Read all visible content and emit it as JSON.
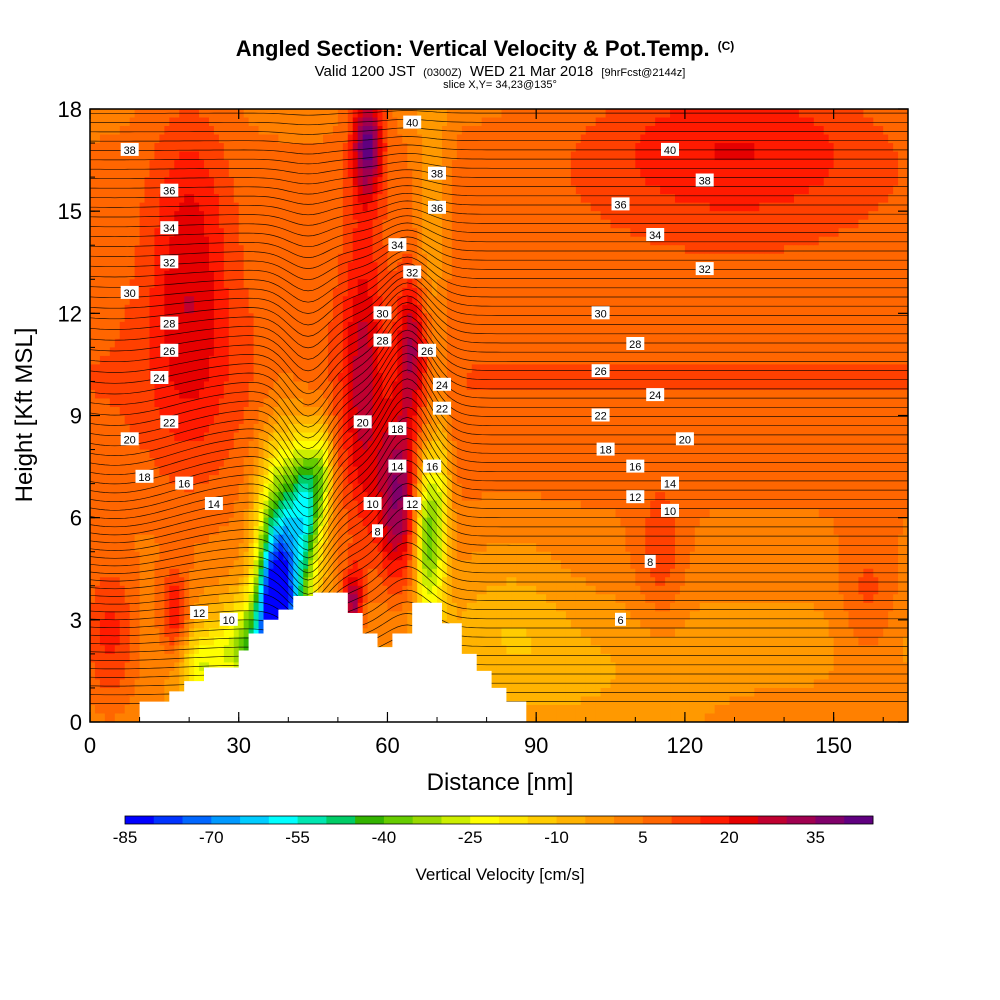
{
  "chart_data": {
    "type": "heatmap",
    "title": "Angled Section: Vertical Velocity & Pot.Temp.",
    "title_mark": "(C)",
    "subtitle_valid": "Valid 1200 JST",
    "subtitle_z": "(0300Z)",
    "subtitle_date": "WED 21 Mar 2018",
    "subtitle_fcst": "[9hrFcst@2144z]",
    "subtitle_slice": "slice X,Y= 34,23@135°",
    "xlabel": "Distance [nm]",
    "ylabel": "Height [Kft MSL]",
    "xlim": [
      0,
      165
    ],
    "ylim": [
      0,
      18
    ],
    "x_ticks": [
      "0",
      "30",
      "60",
      "90",
      "120",
      "150"
    ],
    "y_ticks": [
      "0",
      "3",
      "6",
      "9",
      "12",
      "15",
      "18"
    ],
    "colorbar": {
      "title": "Vertical Velocity [cm/s]",
      "tick_labels": [
        "-85",
        "-70",
        "-55",
        "-40",
        "-25",
        "-10",
        "5",
        "20",
        "35"
      ],
      "colors": [
        "#0000ff",
        "#0033ff",
        "#0066ff",
        "#0099ff",
        "#00ccff",
        "#00ffff",
        "#00e6b0",
        "#00cc66",
        "#33b300",
        "#66cc00",
        "#99d900",
        "#ccee00",
        "#ffff00",
        "#ffe600",
        "#ffcc00",
        "#ffb300",
        "#ff9900",
        "#ff8000",
        "#ff6600",
        "#ff4000",
        "#ff1a00",
        "#e60000",
        "#c00030",
        "#a00050",
        "#80006a",
        "#600080"
      ]
    },
    "terrain": [
      [
        0,
        0
      ],
      [
        10,
        0
      ],
      [
        10,
        0.6
      ],
      [
        16,
        0.6
      ],
      [
        16,
        0.9
      ],
      [
        19,
        0.9
      ],
      [
        19,
        1.2
      ],
      [
        23,
        1.2
      ],
      [
        23,
        1.6
      ],
      [
        30,
        1.6
      ],
      [
        30,
        2.1
      ],
      [
        32,
        2.1
      ],
      [
        32,
        2.6
      ],
      [
        35,
        2.6
      ],
      [
        35,
        3.0
      ],
      [
        38,
        3.0
      ],
      [
        38,
        3.3
      ],
      [
        41,
        3.3
      ],
      [
        41,
        3.7
      ],
      [
        45,
        3.7
      ],
      [
        45,
        3.8
      ],
      [
        52,
        3.8
      ],
      [
        52,
        3.2
      ],
      [
        55,
        3.2
      ],
      [
        55,
        2.6
      ],
      [
        58,
        2.6
      ],
      [
        58,
        2.2
      ],
      [
        61,
        2.2
      ],
      [
        61,
        2.6
      ],
      [
        65,
        2.6
      ],
      [
        65,
        3.5
      ],
      [
        71,
        3.5
      ],
      [
        71,
        2.9
      ],
      [
        75,
        2.9
      ],
      [
        75,
        2.0
      ],
      [
        78,
        2.0
      ],
      [
        78,
        1.5
      ],
      [
        81,
        1.5
      ],
      [
        81,
        1.0
      ],
      [
        84,
        1.0
      ],
      [
        84,
        0.6
      ],
      [
        88,
        0.6
      ],
      [
        88,
        0
      ],
      [
        165,
        0
      ]
    ],
    "velocity_features": [
      {
        "x": 39,
        "y": 4.5,
        "sx": 5,
        "sy": 3.5,
        "value": -70
      },
      {
        "x": 37,
        "y": 3.5,
        "sx": 3,
        "sy": 1.6,
        "value": -40
      },
      {
        "x": 33,
        "y": 2.2,
        "sx": 7,
        "sy": 1.4,
        "value": -35
      },
      {
        "x": 44,
        "y": 6.5,
        "sx": 3,
        "sy": 2,
        "value": -40
      },
      {
        "x": 47,
        "y": 7.5,
        "sx": 2,
        "sy": 1.5,
        "value": -25
      },
      {
        "x": 68,
        "y": 5.5,
        "sx": 2.5,
        "sy": 2.5,
        "value": -40
      },
      {
        "x": 71,
        "y": 6.5,
        "sx": 2,
        "sy": 3,
        "value": -20
      },
      {
        "x": 62,
        "y": 6.5,
        "sx": 4,
        "sy": 2.5,
        "value": 30
      },
      {
        "x": 55,
        "y": 10,
        "sx": 4,
        "sy": 5,
        "value": 18
      },
      {
        "x": 65,
        "y": 11,
        "sx": 3,
        "sy": 2,
        "value": 22
      },
      {
        "x": 56,
        "y": 17,
        "sx": 3,
        "sy": 1.5,
        "value": 35
      },
      {
        "x": 69,
        "y": 15,
        "sx": 3,
        "sy": 5,
        "value": -12
      },
      {
        "x": 53,
        "y": 3.5,
        "sx": 2,
        "sy": 1,
        "value": 30
      },
      {
        "x": 20,
        "y": 13,
        "sx": 8,
        "sy": 5,
        "value": 17
      },
      {
        "x": 4,
        "y": 2.5,
        "sx": 6,
        "sy": 2,
        "value": 18
      },
      {
        "x": 17,
        "y": 3,
        "sx": 3,
        "sy": 1.5,
        "value": 20
      },
      {
        "x": 22,
        "y": 1.5,
        "sx": 5,
        "sy": 1.2,
        "value": -22
      },
      {
        "x": 130,
        "y": 17,
        "sx": 30,
        "sy": 2.5,
        "value": 15
      },
      {
        "x": 115,
        "y": 4.8,
        "sx": 5,
        "sy": 2,
        "value": 10
      },
      {
        "x": 157,
        "y": 3.5,
        "sx": 6,
        "sy": 2,
        "value": 10
      },
      {
        "x": 85,
        "y": 3,
        "sx": 12,
        "sy": 2.5,
        "value": -8
      },
      {
        "x": 100,
        "y": 1,
        "sx": 20,
        "sy": 1.5,
        "value": -5
      }
    ],
    "theta_contour_labels": [
      {
        "x": 8,
        "y": 16.8,
        "text": "38"
      },
      {
        "x": 16,
        "y": 15.6,
        "text": "36"
      },
      {
        "x": 16,
        "y": 14.5,
        "text": "34"
      },
      {
        "x": 16,
        "y": 13.5,
        "text": "32"
      },
      {
        "x": 8,
        "y": 12.6,
        "text": "30"
      },
      {
        "x": 16,
        "y": 11.7,
        "text": "28"
      },
      {
        "x": 16,
        "y": 10.9,
        "text": "26"
      },
      {
        "x": 14,
        "y": 10.1,
        "text": "24"
      },
      {
        "x": 16,
        "y": 8.8,
        "text": "22"
      },
      {
        "x": 8,
        "y": 8.3,
        "text": "20"
      },
      {
        "x": 11,
        "y": 7.2,
        "text": "18"
      },
      {
        "x": 19,
        "y": 7.0,
        "text": "16"
      },
      {
        "x": 25,
        "y": 6.4,
        "text": "14"
      },
      {
        "x": 22,
        "y": 3.2,
        "text": "12"
      },
      {
        "x": 28,
        "y": 3.0,
        "text": "10"
      },
      {
        "x": 65,
        "y": 17.6,
        "text": "40"
      },
      {
        "x": 70,
        "y": 16.1,
        "text": "38"
      },
      {
        "x": 70,
        "y": 15.1,
        "text": "36"
      },
      {
        "x": 62,
        "y": 14.0,
        "text": "34"
      },
      {
        "x": 65,
        "y": 13.2,
        "text": "32"
      },
      {
        "x": 59,
        "y": 12.0,
        "text": "30"
      },
      {
        "x": 59,
        "y": 11.2,
        "text": "28"
      },
      {
        "x": 68,
        "y": 10.9,
        "text": "26"
      },
      {
        "x": 71,
        "y": 9.9,
        "text": "24"
      },
      {
        "x": 71,
        "y": 9.2,
        "text": "22"
      },
      {
        "x": 55,
        "y": 8.8,
        "text": "20"
      },
      {
        "x": 62,
        "y": 8.6,
        "text": "18"
      },
      {
        "x": 69,
        "y": 7.5,
        "text": "16"
      },
      {
        "x": 62,
        "y": 7.5,
        "text": "14"
      },
      {
        "x": 65,
        "y": 6.4,
        "text": "12"
      },
      {
        "x": 57,
        "y": 6.4,
        "text": "10"
      },
      {
        "x": 58,
        "y": 5.6,
        "text": "8"
      },
      {
        "x": 117,
        "y": 16.8,
        "text": "40"
      },
      {
        "x": 124,
        "y": 15.9,
        "text": "38"
      },
      {
        "x": 107,
        "y": 15.2,
        "text": "36"
      },
      {
        "x": 114,
        "y": 14.3,
        "text": "34"
      },
      {
        "x": 124,
        "y": 13.3,
        "text": "32"
      },
      {
        "x": 103,
        "y": 12.0,
        "text": "30"
      },
      {
        "x": 110,
        "y": 11.1,
        "text": "28"
      },
      {
        "x": 103,
        "y": 10.3,
        "text": "26"
      },
      {
        "x": 114,
        "y": 9.6,
        "text": "24"
      },
      {
        "x": 103,
        "y": 9.0,
        "text": "22"
      },
      {
        "x": 120,
        "y": 8.3,
        "text": "20"
      },
      {
        "x": 104,
        "y": 8.0,
        "text": "18"
      },
      {
        "x": 110,
        "y": 7.5,
        "text": "16"
      },
      {
        "x": 117,
        "y": 7.0,
        "text": "14"
      },
      {
        "x": 110,
        "y": 6.6,
        "text": "12"
      },
      {
        "x": 117,
        "y": 6.2,
        "text": "10"
      },
      {
        "x": 113,
        "y": 4.7,
        "text": "8"
      },
      {
        "x": 107,
        "y": 3.0,
        "text": "6"
      }
    ]
  }
}
